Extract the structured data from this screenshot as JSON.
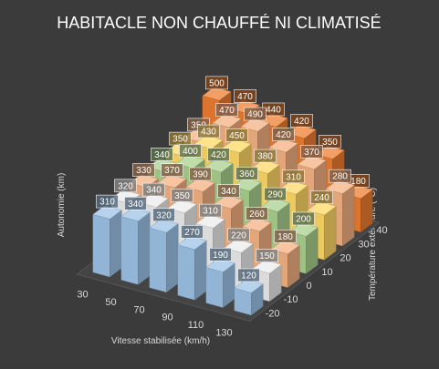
{
  "chart_data": {
    "type": "bar",
    "subtype": "3d-column-grid",
    "title": "HABITACLE  NON CHAUFFÉ NI CLIMATISÉ",
    "xlabel": "Vitesse stabilisée (km/h)",
    "ylabel": "Autonomie (km)",
    "zlabel": "Température extérieure (°C)",
    "x_categories": [
      "30",
      "50",
      "70",
      "90",
      "110",
      "130"
    ],
    "z_categories": [
      "-20",
      "-10",
      "0",
      "10",
      "20",
      "30",
      "40"
    ],
    "series": [
      {
        "name": "-20",
        "values": [
          310,
          340,
          320,
          270,
          190,
          120
        ]
      },
      {
        "name": "-10",
        "values": [
          320,
          340,
          350,
          310,
          220,
          150
        ]
      },
      {
        "name": "0",
        "values": [
          330,
          370,
          390,
          340,
          260,
          180
        ]
      },
      {
        "name": "10",
        "values": [
          340,
          400,
          420,
          360,
          290,
          200
        ]
      },
      {
        "name": "20",
        "values": [
          350,
          430,
          450,
          380,
          310,
          240
        ]
      },
      {
        "name": "30",
        "values": [
          350,
          470,
          490,
          420,
          370,
          280
        ]
      },
      {
        "name": "40",
        "values": [
          500,
          470,
          440,
          420,
          350,
          180
        ]
      }
    ],
    "series_colors": [
      "#9dc3e6",
      "#ececec",
      "#f4b183",
      "#a9d18e",
      "#ffd966",
      "#f4b183",
      "#ed7d31"
    ],
    "legend": "none",
    "grid": false
  }
}
